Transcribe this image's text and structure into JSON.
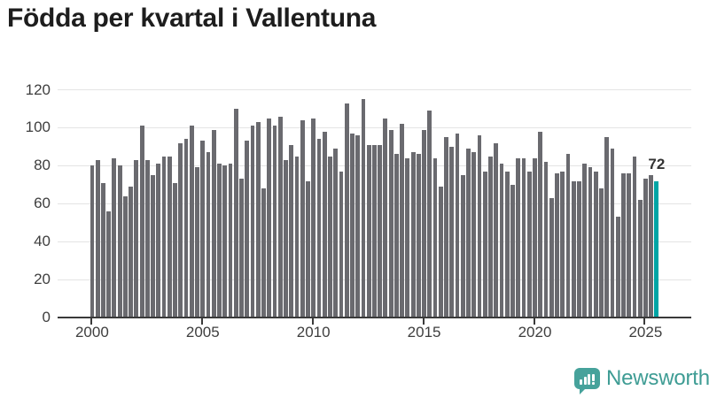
{
  "title": "Födda per kvartal i Vallentuna",
  "branding": {
    "name": "Newsworthy"
  },
  "colors": {
    "bar": "#6a6a6f",
    "highlight": "#00a5a5",
    "grid": "#e4e4e4",
    "axis": "#3a3a3a",
    "label_text": "#3e3e3e",
    "title_text": "#1d1d1d",
    "logo": "#46a29b",
    "logo_text": "#3e9c94"
  },
  "chart_data": {
    "type": "bar",
    "title": "Födda per kvartal i Vallentuna",
    "frequency": "quarterly",
    "x_start": "2000-Q1",
    "x_end": "2025-Q3",
    "xlabel": "",
    "ylabel": "",
    "ylim": [
      0,
      120
    ],
    "grid": true,
    "legend": false,
    "x_tick_labels": [
      "2000",
      "2005",
      "2010",
      "2015",
      "2020",
      "2025"
    ],
    "y_ticks": [
      0,
      20,
      40,
      60,
      80,
      100,
      120
    ],
    "highlight_index": 102,
    "highlight_value_label": "72",
    "values": [
      80,
      83,
      71,
      56,
      84,
      80,
      64,
      69,
      83,
      101,
      83,
      75,
      81,
      85,
      85,
      71,
      92,
      94,
      101,
      79,
      93,
      87,
      99,
      81,
      80,
      81,
      110,
      73,
      93,
      101,
      103,
      68,
      105,
      101,
      106,
      83,
      91,
      85,
      104,
      72,
      105,
      94,
      98,
      85,
      89,
      77,
      113,
      97,
      96,
      115,
      91,
      91,
      91,
      105,
      99,
      86,
      102,
      84,
      87,
      86,
      99,
      109,
      84,
      69,
      95,
      90,
      97,
      75,
      89,
      87,
      96,
      77,
      85,
      92,
      81,
      77,
      70,
      84,
      84,
      77,
      84,
      98,
      82,
      63,
      76,
      77,
      86,
      72,
      72,
      81,
      79,
      77,
      68,
      95,
      89,
      53,
      76,
      76,
      85,
      62,
      73,
      75,
      72
    ]
  }
}
